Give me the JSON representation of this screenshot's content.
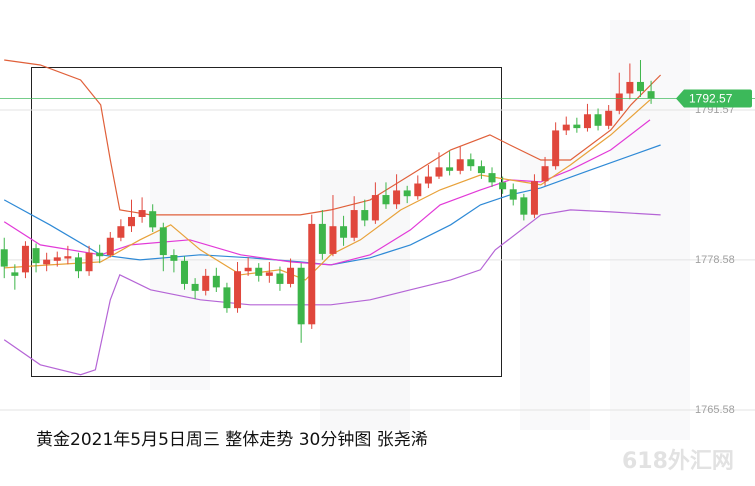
{
  "chart_data": {
    "type": "candlestick",
    "title": "黄金2021年5月5日周三  整体走势  30分钟图 张尧浠",
    "watermark": "618外汇网",
    "ylim": [
      1758.99,
      1801.1
    ],
    "xlim": [
      -0.4,
      70.8
    ],
    "yticks": [
      1765.58,
      1778.58,
      1791.57
    ],
    "grid": true,
    "up_color": "#e0473c",
    "down_color": "#3db54a",
    "last_color": "#3cb95a",
    "candles": {
      "open": [
        1779.5,
        1777.5,
        1777.5,
        1779.6,
        1778.2,
        1778.5,
        1778.7,
        1778.8,
        1777.6,
        1779.2,
        1779.0,
        1780.5,
        1781.5,
        1782.3,
        1782.8,
        1781.4,
        1779.0,
        1778.5,
        1776.5,
        1775.9,
        1777.2,
        1776.2,
        1774.4,
        1777.6,
        1777.9,
        1777.2,
        1777.4,
        1776.5,
        1777.9,
        1773.0,
        1781.7,
        1779.1,
        1781.5,
        1780.5,
        1782.9,
        1782.0,
        1784.2,
        1783.4,
        1784.6,
        1784.1,
        1785.2,
        1785.8,
        1786.6,
        1786.3,
        1787.3,
        1786.7,
        1786.1,
        1785.3,
        1784.7,
        1784.0,
        1782.5,
        1785.4,
        1786.7,
        1789.8,
        1790.3,
        1790.0,
        1791.2,
        1790.2,
        1791.5,
        1793.0,
        1794.0,
        1793.2
      ],
      "high": [
        1780.5,
        1778.2,
        1780.2,
        1780.0,
        1779.2,
        1779.3,
        1779.8,
        1779.2,
        1779.8,
        1779.9,
        1781.0,
        1782.1,
        1783.8,
        1784.0,
        1783.4,
        1781.8,
        1779.5,
        1778.9,
        1777.0,
        1777.8,
        1777.9,
        1776.6,
        1778.4,
        1778.8,
        1778.3,
        1778.4,
        1778.0,
        1778.7,
        1778.3,
        1782.5,
        1782.9,
        1784.2,
        1782.4,
        1784.1,
        1783.8,
        1785.3,
        1785.3,
        1786.0,
        1785.0,
        1785.9,
        1786.8,
        1787.9,
        1788.0,
        1788.4,
        1787.8,
        1787.2,
        1786.6,
        1785.8,
        1785.2,
        1784.3,
        1786.0,
        1787.5,
        1790.5,
        1791.0,
        1790.9,
        1792.1,
        1791.7,
        1792.0,
        1794.8,
        1795.6,
        1795.9,
        1794.1
      ],
      "low": [
        1777.0,
        1776.0,
        1777.0,
        1777.5,
        1777.6,
        1778.0,
        1778.2,
        1777.0,
        1777.2,
        1778.3,
        1778.8,
        1780.2,
        1781.0,
        1781.8,
        1781.0,
        1777.6,
        1777.5,
        1776.0,
        1775.2,
        1775.5,
        1775.8,
        1774.0,
        1774.0,
        1777.2,
        1776.7,
        1776.6,
        1775.9,
        1776.2,
        1771.4,
        1772.6,
        1778.6,
        1778.9,
        1779.8,
        1780.2,
        1781.5,
        1781.7,
        1783.0,
        1783.0,
        1783.5,
        1783.8,
        1784.8,
        1785.6,
        1785.9,
        1786.0,
        1786.3,
        1785.6,
        1784.9,
        1784.3,
        1783.3,
        1782.0,
        1782.2,
        1785.0,
        1786.4,
        1789.4,
        1789.6,
        1789.7,
        1789.8,
        1789.9,
        1791.2,
        1792.5,
        1792.7,
        1792.1
      ],
      "close": [
        1778.0,
        1777.2,
        1779.8,
        1778.3,
        1778.6,
        1778.8,
        1778.9,
        1777.6,
        1779.2,
        1778.9,
        1780.5,
        1781.5,
        1782.3,
        1782.9,
        1781.4,
        1779.0,
        1778.5,
        1776.5,
        1775.9,
        1777.2,
        1776.2,
        1774.4,
        1777.6,
        1777.9,
        1777.2,
        1777.5,
        1776.5,
        1777.9,
        1773.0,
        1781.7,
        1779.1,
        1781.5,
        1780.5,
        1782.9,
        1782.0,
        1784.2,
        1783.4,
        1784.6,
        1784.1,
        1785.2,
        1785.8,
        1786.6,
        1786.3,
        1787.3,
        1786.7,
        1786.1,
        1785.3,
        1784.7,
        1783.8,
        1782.5,
        1785.4,
        1786.7,
        1789.8,
        1790.3,
        1790.0,
        1791.2,
        1790.2,
        1791.5,
        1793.0,
        1794.0,
        1793.2,
        1792.57
      ]
    },
    "series": [
      {
        "color": "#e0603a",
        "x": [
          0,
          3.4,
          7.2,
          9.1,
          10,
          10.9,
          13.8,
          23.2,
          27.9,
          30.8,
          34.5,
          38.3,
          42.1,
          45.8,
          47.7,
          50.6,
          53.4,
          57.2,
          59.1,
          61.9
        ],
        "values": [
          1795.9,
          1795.47,
          1794.17,
          1792.01,
          1787.24,
          1782.91,
          1782.48,
          1782.48,
          1782.48,
          1782.91,
          1783.78,
          1785.94,
          1788.11,
          1789.41,
          1788.54,
          1787.24,
          1787.24,
          1789.84,
          1792.01,
          1794.6
        ]
      },
      {
        "color": "#b565d6",
        "x": [
          0,
          3.4,
          7.2,
          8.6,
          10,
          10.9,
          13.8,
          18.5,
          23.2,
          30.8,
          34.5,
          38.3,
          42.1,
          44.9,
          46.3,
          50.6,
          53.4,
          57.2,
          61.9
        ],
        "values": [
          1771.66,
          1769.49,
          1768.63,
          1769.06,
          1775.12,
          1777.29,
          1775.99,
          1775.12,
          1774.69,
          1774.69,
          1775.12,
          1775.99,
          1776.85,
          1777.72,
          1779.45,
          1782.48,
          1782.91,
          1782.74,
          1782.48
        ]
      },
      {
        "color": "#2f8ad6",
        "x": [
          0,
          4.3,
          9.1,
          12.8,
          18.5,
          23.2,
          27.9,
          30.8,
          34.5,
          38.3,
          42.1,
          44.9,
          47.7,
          50.6,
          55.3,
          61.9
        ],
        "values": [
          1783.78,
          1781.62,
          1779.02,
          1778.58,
          1779.02,
          1778.76,
          1778.41,
          1778.15,
          1778.76,
          1779.88,
          1781.62,
          1783.35,
          1784.21,
          1784.82,
          1786.38,
          1788.54
        ]
      },
      {
        "color": "#e23ad8",
        "x": [
          0,
          3.4,
          9.1,
          11.9,
          17.5,
          22.3,
          27,
          30.8,
          34.5,
          38.3,
          41.1,
          44.9,
          47.7,
          50.6,
          53.4,
          57.2,
          60.9
        ],
        "values": [
          1781.88,
          1779.88,
          1779.02,
          1779.88,
          1780.32,
          1779.02,
          1778.41,
          1778.15,
          1779.02,
          1781.18,
          1783.35,
          1784.65,
          1785.51,
          1785.34,
          1786.38,
          1788.11,
          1790.71
        ]
      },
      {
        "color": "#e8a23a",
        "x": [
          0,
          4.3,
          9.1,
          12.8,
          15.7,
          18.5,
          22.3,
          26,
          28.4,
          30.8,
          33.6,
          37.4,
          41.1,
          44.9,
          47.7,
          50.6,
          53.4,
          57.2,
          60.9
        ],
        "values": [
          1777.89,
          1778.15,
          1778.41,
          1780.32,
          1781.62,
          1779.45,
          1777.29,
          1777.72,
          1776.85,
          1779.02,
          1780.32,
          1782.91,
          1784.65,
          1785.94,
          1785.51,
          1785.08,
          1786.81,
          1789.41,
          1792.44
        ]
      }
    ]
  }
}
